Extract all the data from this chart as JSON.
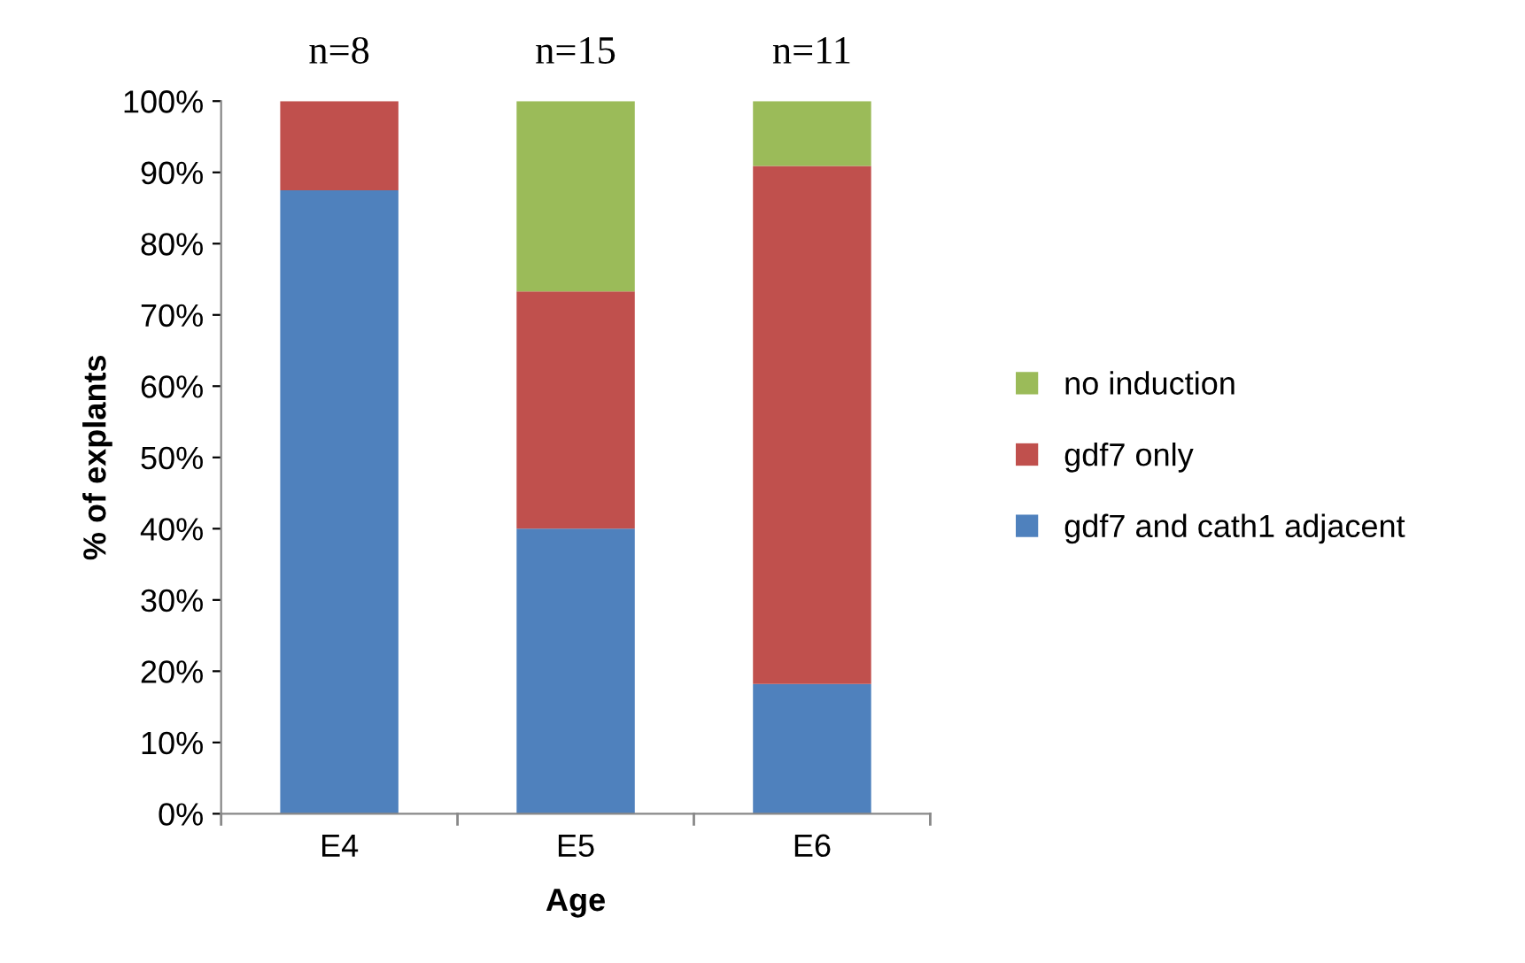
{
  "chart_data": {
    "type": "bar",
    "stacked": true,
    "xlabel": "Age",
    "ylabel": "% of explants",
    "categories": [
      "E4",
      "E5",
      "E6"
    ],
    "series": [
      {
        "name": "gdf7 and cath1 adjacent",
        "color": "#4f81bd",
        "values": [
          87.5,
          40,
          18.2
        ]
      },
      {
        "name": "gdf7 only",
        "color": "#c0504d",
        "values": [
          12.5,
          33.3,
          72.7
        ]
      },
      {
        "name": "no induction",
        "color": "#9bbb59",
        "values": [
          0,
          26.7,
          9.1
        ]
      }
    ],
    "ylim": [
      0,
      100
    ],
    "yticks": [
      {
        "value": 0,
        "label": "0%"
      },
      {
        "value": 10,
        "label": "10%"
      },
      {
        "value": 20,
        "label": "20%"
      },
      {
        "value": 30,
        "label": "30%"
      },
      {
        "value": 40,
        "label": "40%"
      },
      {
        "value": 50,
        "label": "50%"
      },
      {
        "value": 60,
        "label": "60%"
      },
      {
        "value": 70,
        "label": "70%"
      },
      {
        "value": 80,
        "label": "80%"
      },
      {
        "value": 90,
        "label": "90%"
      },
      {
        "value": 100,
        "label": "100%"
      }
    ],
    "annotations": [
      {
        "text": "n=8",
        "x": "E4",
        "y": 100
      },
      {
        "text": "n=15",
        "x": "E5",
        "y": 100
      },
      {
        "text": "n=11",
        "x": "E6",
        "y": 100
      }
    ],
    "legend": "right",
    "grid": false
  }
}
